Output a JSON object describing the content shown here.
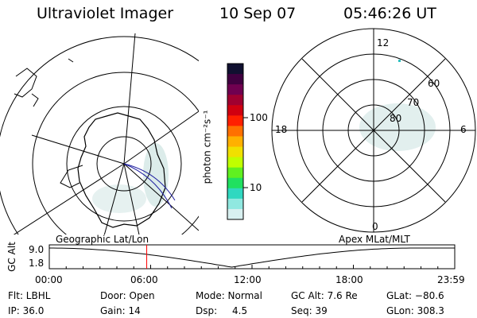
{
  "header": {
    "instrument": "Ultraviolet Imager",
    "date": "10 Sep 07",
    "time": "05:46:26 UT"
  },
  "colorbar": {
    "unit_label": "photon cm⁻²s⁻¹",
    "ticks": [
      "100",
      "10"
    ],
    "colors": [
      "#101030",
      "#400040",
      "#700050",
      "#a00030",
      "#d00010",
      "#ff2000",
      "#ff7000",
      "#ffb000",
      "#f0e000",
      "#c0ff00",
      "#60f020",
      "#20e060",
      "#30d8c0",
      "#90e8e0",
      "#d8f0f0"
    ]
  },
  "polar_plot": {
    "clock_labels": {
      "top": "12",
      "left": "18",
      "right": "6",
      "bottom": "0"
    },
    "lat_labels": [
      "60",
      "70",
      "80"
    ]
  },
  "timeline": {
    "left_caption": "Geographic Lat/Lon",
    "right_caption": "Apex MLat/MLT",
    "axis_label": "GC Alt",
    "y_ticks": [
      "9.0",
      "1.8"
    ],
    "x_ticks": [
      "00:00",
      "06:00",
      "12:00",
      "18:00",
      "23:59"
    ],
    "current_marker_color": "#ff0000"
  },
  "footer": {
    "flt": "Flt: LBHL",
    "ip": "IP: 36.0",
    "door": "Door: Open",
    "gain": "Gain: 14",
    "mode": "Mode: Normal",
    "dsp_label": "Dsp:",
    "dsp_value": "4.5",
    "gc_alt": "GC Alt: 7.6 Re",
    "seq": "Seq: 39",
    "glat": "GLat: −80.6",
    "glon": "GLon: 308.3"
  }
}
